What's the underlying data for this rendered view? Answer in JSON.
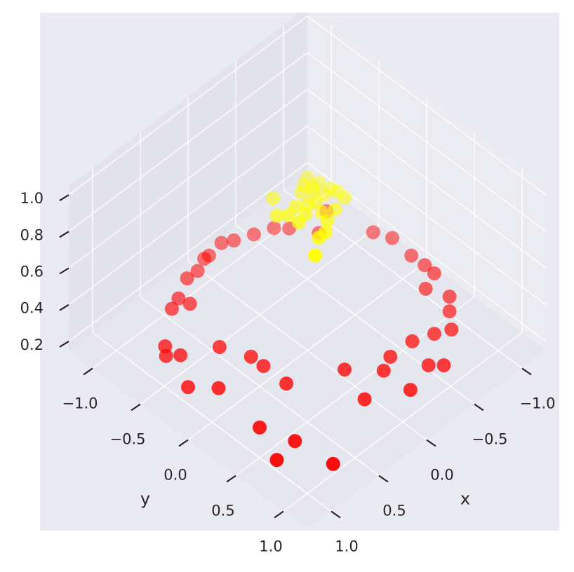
{
  "chart_data": {
    "type": "scatter3d",
    "x_label": "x",
    "y_label": "y",
    "xlim": [
      -1.25,
      1.25
    ],
    "ylim": [
      -1.25,
      1.25
    ],
    "zlim": [
      0.15,
      1.05
    ],
    "xticks": [
      {
        "value": -1,
        "label": "−1.0"
      },
      {
        "value": -0.5,
        "label": "−0.5"
      },
      {
        "value": 0,
        "label": "0.0"
      },
      0.5,
      {
        "value": 1,
        "label": "1.0"
      }
    ],
    "yticks": [
      {
        "value": -1,
        "label": "−1.0"
      },
      {
        "value": -0.5,
        "label": "−0.5"
      },
      {
        "value": 0,
        "label": "0.0"
      },
      0.5,
      {
        "value": 1,
        "label": "1.0"
      }
    ],
    "zticks": [
      0.2,
      0.4,
      0.6,
      0.8,
      {
        "value": 1,
        "label": "1.0"
      }
    ],
    "grid": true,
    "depthshade": true,
    "series": [
      {
        "color": "#ff0000",
        "x": [
          0.7,
          0.58,
          0.57,
          0.42,
          0.3,
          0.18,
          0.12,
          -0.02,
          -0.09,
          -0.25,
          -0.4,
          -0.49,
          -0.6,
          -0.78,
          -0.89,
          -0.95,
          -0.94,
          -0.93,
          -0.91,
          -0.77,
          -0.84,
          -0.75,
          -0.62,
          -0.5,
          -0.32,
          -0.11,
          0.01,
          -0.25,
          -0.33,
          0.03,
          0.22,
          0.31,
          0.94,
          0.98,
          1.22,
          1.07,
          0.61,
          0.62,
          0.62,
          0.73,
          1.01,
          1.15,
          0.98,
          1.06,
          1.01
        ],
        "y": [
          -0.72,
          -0.77,
          -0.66,
          -0.84,
          -0.85,
          -0.9,
          -0.91,
          -0.92,
          -0.86,
          -0.81,
          -0.75,
          -0.68,
          -0.48,
          -0.58,
          -0.2,
          -0.06,
          0.15,
          0.3,
          0.42,
          0.47,
          0.65,
          0.74,
          0.89,
          0.83,
          0.78,
          0.76,
          0.81,
          1.02,
          1.1,
          1.11,
          0.61,
          0.91,
          1.21,
          0.85,
          0.9,
          0.57,
          0.39,
          0.16,
          0.03,
          -0.19,
          0.08,
          -0.1,
          -0.35,
          -0.42,
          -0.48
        ],
        "z": [
          0.37,
          0.36,
          0.37,
          0.38,
          0.37,
          0.37,
          0.36,
          0.37,
          0.38,
          0.37,
          0.37,
          0.36,
          0.37,
          0.38,
          0.37,
          0.37,
          0.36,
          0.37,
          0.38,
          0.37,
          0.37,
          0.36,
          0.37,
          0.37,
          0.38,
          0.37,
          0.36,
          0.37,
          0.37,
          0.38,
          0.37,
          0.36,
          0.37,
          0.37,
          0.38,
          0.37,
          0.36,
          0.37,
          0.37,
          0.38,
          0.37,
          0.36,
          0.37,
          0.37,
          0.38
        ]
      },
      {
        "color": "#ffff00",
        "x": [
          0.14,
          0.23,
          0.09,
          -0.05,
          -0.16,
          -0.15,
          -0.2,
          -0.17,
          -0.23,
          -0.23,
          -0.24,
          -0.12,
          -0.06,
          0.01,
          0.16,
          0.01,
          0.15,
          0.09,
          0.32,
          0.19,
          0.08,
          -0.03,
          -0.1,
          -0.12
        ],
        "y": [
          -0.22,
          -0.09,
          -0.03,
          -0.11,
          -0.16,
          -0.09,
          -0.08,
          0.01,
          0.01,
          0.08,
          0.15,
          0.17,
          0.03,
          0.02,
          0.07,
          0.22,
          0.27,
          0.28,
          0.4,
          -0.01,
          0.06,
          0.12,
          -0.14,
          -0.06
        ],
        "z": [
          0.95,
          0.94,
          0.96,
          0.95,
          0.97,
          0.95,
          0.96,
          0.94,
          0.95,
          0.96,
          0.95,
          0.94,
          0.95,
          0.96,
          0.94,
          0.95,
          0.93,
          0.94,
          0.95,
          0.96,
          0.95,
          0.94,
          0.96,
          0.95
        ]
      }
    ]
  }
}
